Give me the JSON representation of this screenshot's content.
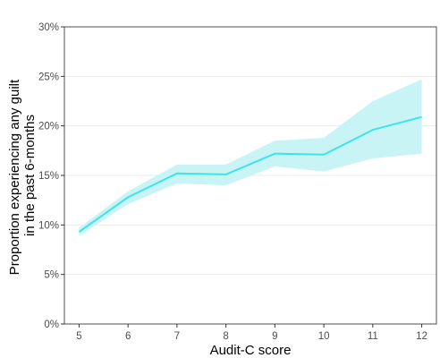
{
  "chart_data": {
    "type": "line",
    "xlabel": "Audit-C score",
    "ylabel_lines": [
      "Proportion experiencing any guilt",
      "in the past 6-months"
    ],
    "x": [
      5,
      6,
      7,
      8,
      9,
      10,
      11,
      12
    ],
    "xlim": [
      4.7,
      12.3
    ],
    "ylim": [
      0,
      0.3
    ],
    "x_ticks": [
      5,
      6,
      7,
      8,
      9,
      10,
      11,
      12
    ],
    "y_ticks": [
      0,
      0.05,
      0.1,
      0.15,
      0.2,
      0.25,
      0.3
    ],
    "y_tick_labels": [
      "0%",
      "5%",
      "10%",
      "15%",
      "20%",
      "25%",
      "30%"
    ],
    "grid": "horizontal",
    "series": [
      {
        "values": [
          0.093,
          0.128,
          0.152,
          0.151,
          0.172,
          0.171,
          0.196,
          0.209
        ],
        "ci_lower": [
          0.089,
          0.121,
          0.142,
          0.14,
          0.159,
          0.154,
          0.167,
          0.172
        ],
        "ci_upper": [
          0.097,
          0.134,
          0.161,
          0.161,
          0.185,
          0.188,
          0.225,
          0.247
        ],
        "line_color": "#3ee3e6",
        "band_color": "#c9f4f6"
      }
    ]
  }
}
